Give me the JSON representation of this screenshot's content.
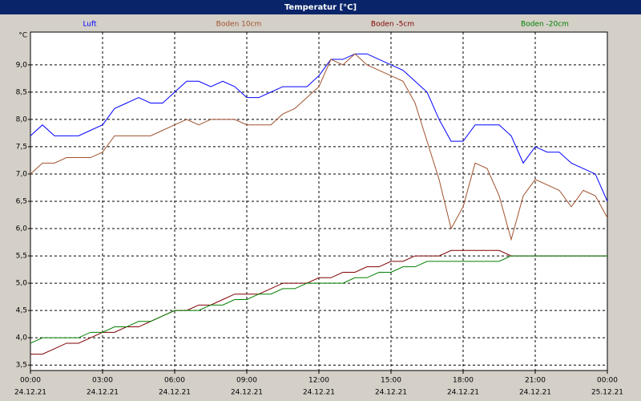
{
  "chart_data": {
    "type": "line",
    "title": "Temperatur [°C]",
    "y_unit": "°C",
    "x": [
      0,
      0.5,
      1,
      1.5,
      2,
      2.5,
      3,
      3.5,
      4,
      4.5,
      5,
      5.5,
      6,
      6.5,
      7,
      7.5,
      8,
      8.5,
      9,
      9.5,
      10,
      10.5,
      11,
      11.5,
      12,
      12.5,
      13,
      13.5,
      14,
      14.5,
      15,
      15.5,
      16,
      16.5,
      17,
      17.5,
      18,
      18.5,
      19,
      19.5,
      20,
      20.5,
      21,
      21.5,
      22,
      22.5,
      23,
      23.5,
      24
    ],
    "series": [
      {
        "name": "Luft",
        "color": "#0000ff",
        "values": [
          7.7,
          7.9,
          7.7,
          7.7,
          7.7,
          7.8,
          7.9,
          8.2,
          8.3,
          8.4,
          8.3,
          8.3,
          8.5,
          8.7,
          8.7,
          8.6,
          8.7,
          8.6,
          8.4,
          8.4,
          8.5,
          8.6,
          8.6,
          8.6,
          8.8,
          9.1,
          9.1,
          9.2,
          9.2,
          9.1,
          9.0,
          8.9,
          8.7,
          8.5,
          8.0,
          7.6,
          7.6,
          7.9,
          7.9,
          7.9,
          7.7,
          7.2,
          7.5,
          7.4,
          7.4,
          7.2,
          7.1,
          7.0,
          6.5
        ]
      },
      {
        "name": "Boden 10cm",
        "color": "#a0522d",
        "values": [
          7.0,
          7.2,
          7.2,
          7.3,
          7.3,
          7.3,
          7.4,
          7.7,
          7.7,
          7.7,
          7.7,
          7.8,
          7.9,
          8.0,
          7.9,
          8.0,
          8.0,
          8.0,
          7.9,
          7.9,
          7.9,
          8.1,
          8.2,
          8.4,
          8.6,
          9.1,
          9.0,
          9.2,
          9.0,
          8.9,
          8.8,
          8.7,
          8.3,
          7.6,
          6.9,
          6.0,
          6.4,
          7.2,
          7.1,
          6.6,
          5.8,
          6.6,
          6.9,
          6.8,
          6.7,
          6.4,
          6.7,
          6.6,
          6.2
        ]
      },
      {
        "name": "Boden -5cm",
        "color": "#800000",
        "values": [
          3.7,
          3.7,
          3.8,
          3.9,
          3.9,
          4.0,
          4.1,
          4.1,
          4.2,
          4.2,
          4.3,
          4.4,
          4.5,
          4.5,
          4.6,
          4.6,
          4.7,
          4.8,
          4.8,
          4.8,
          4.9,
          5.0,
          5.0,
          5.0,
          5.1,
          5.1,
          5.2,
          5.2,
          5.3,
          5.3,
          5.4,
          5.4,
          5.5,
          5.5,
          5.5,
          5.6,
          5.6,
          5.6,
          5.6,
          5.6,
          5.5,
          5.5,
          5.5,
          5.5,
          5.5,
          5.5,
          5.5,
          5.5,
          5.5
        ]
      },
      {
        "name": "Boden -20cm",
        "color": "#008000",
        "values": [
          3.9,
          4.0,
          4.0,
          4.0,
          4.0,
          4.1,
          4.1,
          4.2,
          4.2,
          4.3,
          4.3,
          4.4,
          4.5,
          4.5,
          4.5,
          4.6,
          4.6,
          4.7,
          4.7,
          4.8,
          4.8,
          4.9,
          4.9,
          5.0,
          5.0,
          5.0,
          5.0,
          5.1,
          5.1,
          5.2,
          5.2,
          5.3,
          5.3,
          5.4,
          5.4,
          5.4,
          5.4,
          5.4,
          5.4,
          5.4,
          5.5,
          5.5,
          5.5,
          5.5,
          5.5,
          5.5,
          5.5,
          5.5,
          5.5
        ]
      }
    ],
    "xlim": [
      0,
      24
    ],
    "xticks": [
      {
        "value": 0,
        "label": "00:00"
      },
      {
        "value": 3,
        "label": "03:00"
      },
      {
        "value": 6,
        "label": "06:00"
      },
      {
        "value": 9,
        "label": "09:00"
      },
      {
        "value": 12,
        "label": "12:00"
      },
      {
        "value": 15,
        "label": "15:00"
      },
      {
        "value": 18,
        "label": "18:00"
      },
      {
        "value": 21,
        "label": "21:00"
      },
      {
        "value": 24,
        "label": "00:00"
      }
    ],
    "xtick_dates": [
      "24.12.21",
      "24.12.21",
      "24.12.21",
      "24.12.21",
      "24.12.21",
      "24.12.21",
      "24.12.21",
      "24.12.21",
      "25.12.21"
    ],
    "ylim": [
      3.4,
      9.6
    ],
    "yticks": [
      {
        "value": 3.5,
        "label": "3,5"
      },
      {
        "value": 4,
        "label": "4,0"
      },
      {
        "value": 4.5,
        "label": "4,5"
      },
      {
        "value": 5,
        "label": "5,0"
      },
      {
        "value": 5.5,
        "label": "5,5"
      },
      {
        "value": 6,
        "label": "6,0"
      },
      {
        "value": 6.5,
        "label": "6,5"
      },
      {
        "value": 7,
        "label": "7,0"
      },
      {
        "value": 7.5,
        "label": "7,5"
      },
      {
        "value": 8,
        "label": "8,0"
      },
      {
        "value": 8.5,
        "label": "8,5"
      },
      {
        "value": 9,
        "label": "9,0"
      }
    ],
    "grid": true
  }
}
